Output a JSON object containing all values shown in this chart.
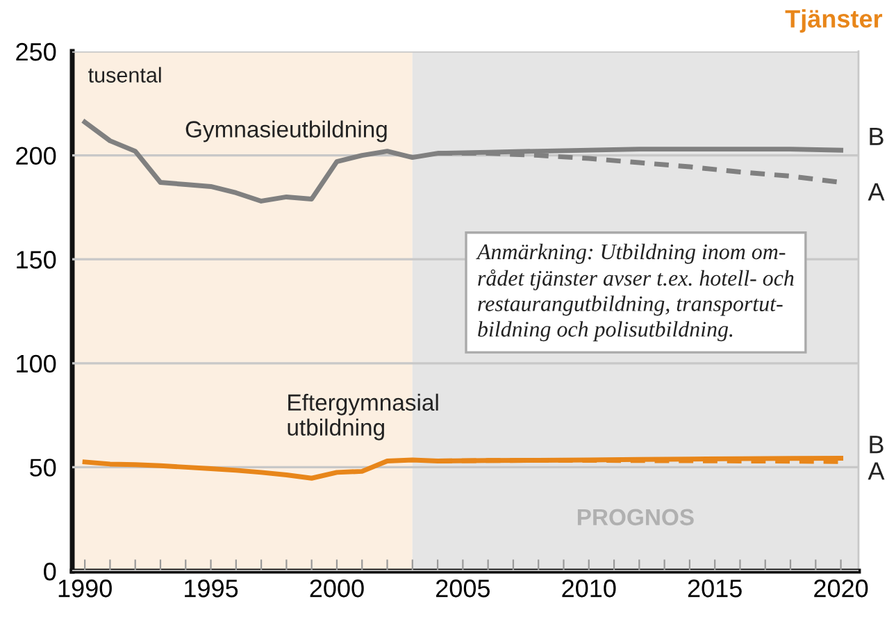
{
  "chart_data": {
    "type": "line",
    "title": "Tjänster",
    "ylabel": "tusental",
    "xlim": [
      1989.5,
      2020.7
    ],
    "ylim": [
      0,
      250
    ],
    "xticks": [
      1990,
      {
        "value": 1991,
        "label": null
      },
      {
        "value": 1992,
        "label": null
      },
      {
        "value": 1993,
        "label": null
      },
      {
        "value": 1994,
        "label": null
      },
      1995,
      {
        "value": 1996,
        "label": null
      },
      {
        "value": 1997,
        "label": null
      },
      {
        "value": 1998,
        "label": null
      },
      {
        "value": 1999,
        "label": null
      },
      2000,
      {
        "value": 2001,
        "label": null
      },
      {
        "value": 2002,
        "label": null
      },
      {
        "value": 2003,
        "label": null
      },
      {
        "value": 2004,
        "label": null
      },
      2005,
      {
        "value": 2006,
        "label": null
      },
      {
        "value": 2007,
        "label": null
      },
      {
        "value": 2008,
        "label": null
      },
      {
        "value": 2009,
        "label": null
      },
      2010,
      {
        "value": 2011,
        "label": null
      },
      {
        "value": 2012,
        "label": null
      },
      {
        "value": 2013,
        "label": null
      },
      {
        "value": 2014,
        "label": null
      },
      2015,
      {
        "value": 2016,
        "label": null
      },
      {
        "value": 2017,
        "label": null
      },
      {
        "value": 2018,
        "label": null
      },
      {
        "value": 2019,
        "label": null
      },
      2020
    ],
    "yticks": [
      0,
      50,
      100,
      150,
      200,
      250
    ],
    "grid": "y",
    "legend": false,
    "marker": "none",
    "bands": [
      {
        "axis": "x",
        "from": 1989.5,
        "to": 2003,
        "label": null,
        "color": "#fcefe1"
      },
      {
        "axis": "x",
        "from": 2003,
        "to": 2020.7,
        "label": "PROGNOS",
        "color": "#e5e5e5"
      }
    ],
    "series": [
      {
        "name": "Gymnasieutbildning",
        "color": "#808080",
        "line_style": "solid",
        "x": [
          1990,
          1991,
          1992,
          1993,
          1994,
          1995,
          1996,
          1997,
          1998,
          1999,
          2000,
          2001,
          2002,
          2003,
          2004,
          2006,
          2008,
          2010,
          2012,
          2014,
          2016,
          2018,
          2020
        ],
        "values": [
          216,
          207,
          202,
          187,
          186,
          185,
          182,
          178,
          180,
          179,
          197,
          200,
          202,
          199,
          201,
          201.5,
          202,
          202.5,
          203,
          203,
          203,
          203,
          202.5
        ]
      },
      {
        "name": "A",
        "color": "#808080",
        "line_style": "dashed",
        "x": [
          2004,
          2006,
          2008,
          2010,
          2012,
          2014,
          2016,
          2018,
          2020
        ],
        "values": [
          201,
          201,
          200,
          198.5,
          196.5,
          194.5,
          192,
          190,
          187
        ]
      },
      {
        "name": "Eftergymnasial\nutbildning",
        "color": "#e8861a",
        "line_style": "solid",
        "x": [
          1990,
          1991,
          1992,
          1993,
          1994,
          1995,
          1996,
          1997,
          1998,
          1999,
          2000,
          2001,
          2002,
          2003,
          2004,
          2006,
          2008,
          2010,
          2012,
          2014,
          2016,
          2018,
          2020
        ],
        "values": [
          52.5,
          51.5,
          51.2,
          50.7,
          50,
          49.3,
          48.5,
          47.5,
          46.3,
          44.7,
          47.5,
          48,
          53,
          53.5,
          53,
          53.2,
          53.3,
          53.5,
          53.7,
          53.9,
          54.1,
          54.2,
          54.3
        ]
      },
      {
        "name": "A",
        "color": "#e8861a",
        "line_style": "dashed",
        "x": [
          2004,
          2006,
          2008,
          2010,
          2012,
          2014,
          2016,
          2018,
          2020
        ],
        "values": [
          53,
          53.2,
          53.3,
          53.3,
          53.2,
          53.1,
          53,
          52.9,
          52.7
        ]
      }
    ],
    "annotations": [
      "Anmärkning: Utbildning inom om-\nrådet tjänster avser t.ex. hotell- och\nrestaurangutbildning, transportut-\nbildning och polisutbildning.",
      {
        "text": "B",
        "x": 2020,
        "y": 202.5
      },
      {
        "text": "B",
        "x": 2020,
        "y": 54.3
      }
    ]
  }
}
